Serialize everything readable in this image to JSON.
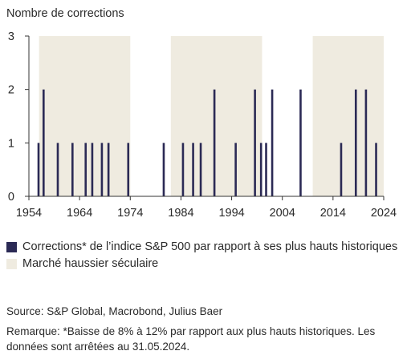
{
  "chart_data": {
    "type": "bar",
    "ylabel": "Nombre de corrections",
    "xlim": [
      1954,
      2024
    ],
    "ylim": [
      0,
      3
    ],
    "x_ticks": [
      1954,
      1964,
      1974,
      1984,
      1994,
      2004,
      2014,
      2024
    ],
    "y_ticks": [
      0,
      1,
      2,
      3
    ],
    "grid": false,
    "legend_placement": "bottom",
    "series": [
      {
        "name": "Corrections* de l’indice S&P 500 par rapport à ses plus hauts historiques",
        "color": "#2b2a55",
        "points": [
          {
            "x": 1955.9,
            "y": 1
          },
          {
            "x": 1956.9,
            "y": 2
          },
          {
            "x": 1959.7,
            "y": 1
          },
          {
            "x": 1962.6,
            "y": 1
          },
          {
            "x": 1965.2,
            "y": 1
          },
          {
            "x": 1966.5,
            "y": 1
          },
          {
            "x": 1968.4,
            "y": 1
          },
          {
            "x": 1969.7,
            "y": 1
          },
          {
            "x": 1973.6,
            "y": 1
          },
          {
            "x": 1980.6,
            "y": 1
          },
          {
            "x": 1984.4,
            "y": 1
          },
          {
            "x": 1986.4,
            "y": 1
          },
          {
            "x": 1987.9,
            "y": 1
          },
          {
            "x": 1990.6,
            "y": 2
          },
          {
            "x": 1994.8,
            "y": 1
          },
          {
            "x": 1998.6,
            "y": 2
          },
          {
            "x": 1999.8,
            "y": 1
          },
          {
            "x": 2000.8,
            "y": 1
          },
          {
            "x": 2002.0,
            "y": 2
          },
          {
            "x": 2007.6,
            "y": 2
          },
          {
            "x": 2015.6,
            "y": 1
          },
          {
            "x": 2018.5,
            "y": 2
          },
          {
            "x": 2020.5,
            "y": 2
          },
          {
            "x": 2022.5,
            "y": 1
          }
        ]
      }
    ],
    "shaded_periods": {
      "name": "Marché haussier séculaire",
      "color": "#efebe0",
      "ranges": [
        [
          1956,
          1974
        ],
        [
          1982,
          2000
        ],
        [
          2010,
          2024
        ]
      ]
    }
  },
  "source_note": "Source: S&P Global, Macrobond, Julius Baer",
  "remark_note": "Remarque: *Baisse de 8% à 12% par rapport aux plus hauts historiques. Les données sont arrêtées au 31.05.2024.",
  "colors": {
    "axis": "#333333",
    "text": "#2a2a2a"
  }
}
